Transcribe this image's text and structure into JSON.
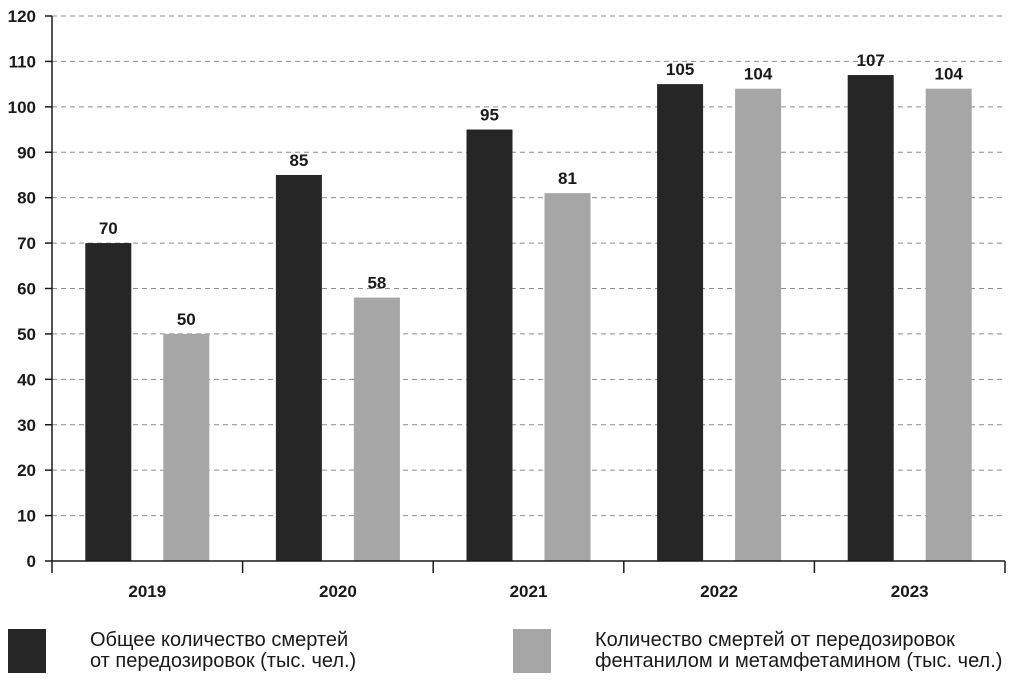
{
  "chart_data": {
    "type": "bar",
    "title": "",
    "xlabel": "",
    "ylabel": "",
    "categories": [
      "2019",
      "2020",
      "2021",
      "2022",
      "2023"
    ],
    "ylim": [
      0,
      120
    ],
    "yticks": [
      0,
      10,
      20,
      30,
      40,
      50,
      60,
      70,
      80,
      90,
      100,
      110,
      120
    ],
    "grid": true,
    "legend_position": "bottom",
    "series": [
      {
        "name": "Общее количество смертей\nот передозировок (тыс. чел.)",
        "color": "#262626",
        "values": [
          70,
          85,
          95,
          105,
          107
        ],
        "labels": [
          "70",
          "85",
          "95",
          "105",
          "107"
        ]
      },
      {
        "name": "Количество смертей от передозировок\nфентанилом и метамфетамином (тыс. чел.)",
        "color": "#a6a6a6",
        "values": [
          50,
          58,
          81,
          104,
          104
        ],
        "labels": [
          "50",
          "58",
          "81",
          "104",
          "104"
        ]
      }
    ]
  }
}
